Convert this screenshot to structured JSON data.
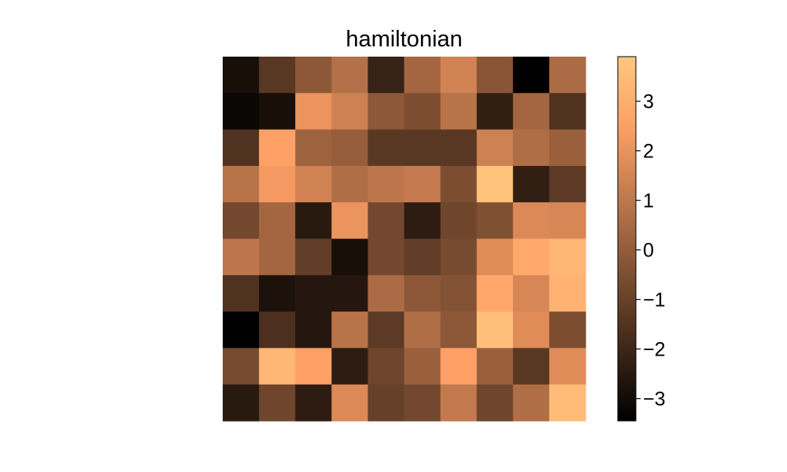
{
  "chart_data": {
    "type": "heatmap",
    "title": "hamiltonian",
    "colormap": "copper",
    "vmin": -3.45,
    "vmax": 3.9,
    "colorbar_ticks": [
      {
        "value": 3,
        "label": "3"
      },
      {
        "value": 2,
        "label": "2"
      },
      {
        "value": 1,
        "label": "1"
      },
      {
        "value": 0,
        "label": "0"
      },
      {
        "value": -1,
        "label": "−1"
      },
      {
        "value": -2,
        "label": "−2"
      },
      {
        "value": -3,
        "label": "−3"
      }
    ],
    "values": [
      [
        -2.9,
        -1.4,
        -0.2,
        0.7,
        -2.2,
        0.3,
        1.4,
        -0.3,
        -3.45,
        0.5
      ],
      [
        -3.2,
        -2.9,
        2.0,
        1.3,
        -0.2,
        -0.6,
        0.8,
        -2.3,
        0.3,
        -1.6
      ],
      [
        -1.6,
        2.5,
        0.2,
        0.0,
        -1.4,
        -1.4,
        -1.4,
        1.3,
        0.6,
        0.1
      ],
      [
        0.8,
        2.2,
        1.4,
        0.6,
        0.9,
        1.1,
        -0.6,
        3.7,
        -2.3,
        -1.3
      ],
      [
        -0.8,
        0.3,
        -2.5,
        2.0,
        -0.8,
        -2.4,
        -0.9,
        -0.5,
        1.6,
        1.5
      ],
      [
        0.9,
        0.3,
        -1.2,
        -2.9,
        -0.8,
        -1.2,
        -0.7,
        1.7,
        2.8,
        3.3
      ],
      [
        -1.6,
        -2.8,
        -2.6,
        -2.6,
        0.5,
        -0.2,
        -0.4,
        2.7,
        1.5,
        3.1
      ],
      [
        -3.45,
        -1.7,
        -2.6,
        0.8,
        -1.3,
        0.6,
        -0.2,
        3.6,
        1.7,
        -0.6
      ],
      [
        -0.7,
        3.3,
        2.5,
        -2.4,
        -0.9,
        0.1,
        2.5,
        0.1,
        -1.4,
        1.7
      ],
      [
        -2.5,
        -0.9,
        -2.4,
        1.6,
        -1.1,
        -0.8,
        1.0,
        -0.9,
        0.6,
        3.5
      ]
    ]
  }
}
